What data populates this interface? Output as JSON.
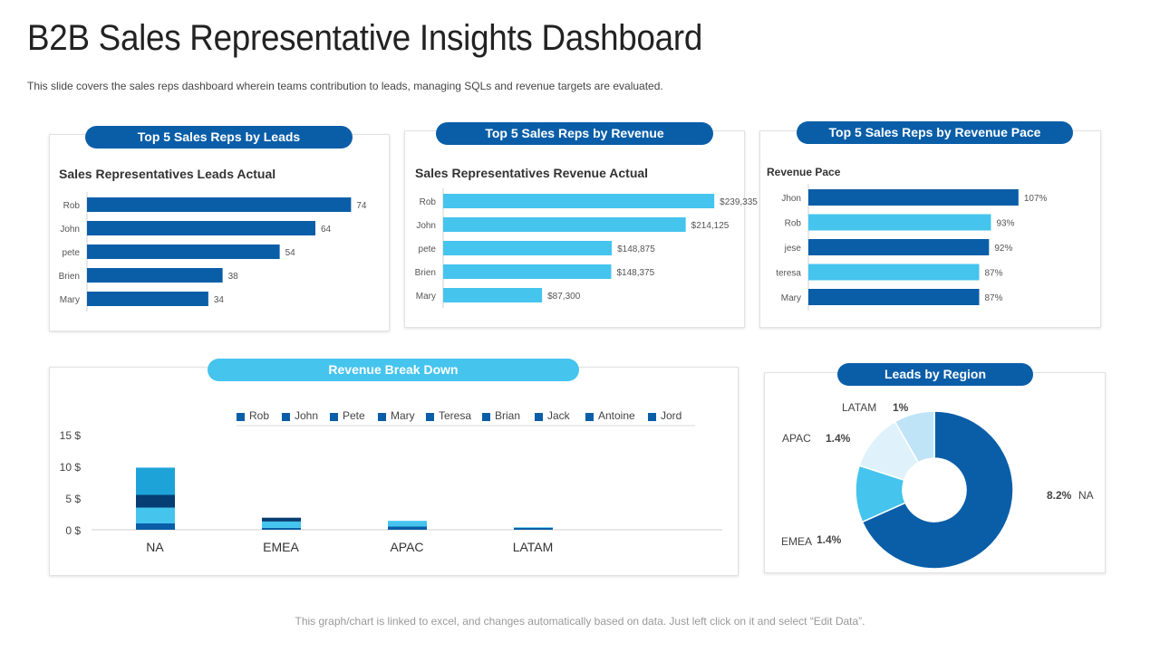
{
  "header": {
    "title": "B2B Sales Representative Insights Dashboard",
    "subtitle": "This slide covers the sales reps dashboard wherein teams contribution to leads, managing SQLs and revenue targets are evaluated."
  },
  "footer": {
    "note": "This graph/chart is linked to excel, and changes automatically based on data. Just left click on it and select “Edit Data”."
  },
  "colors": {
    "dark_blue": "#0a5ea8",
    "light_blue": "#45c4ee",
    "navy": "#063d73",
    "pale_blue": "#bfe3f7"
  },
  "panels": {
    "leads": {
      "pill": "Top 5 Sales Reps by Leads",
      "heading": "Sales Representatives Leads Actual"
    },
    "revenue": {
      "pill": "Top 5 Sales Reps by Revenue",
      "heading": "Sales Representatives Revenue Actual"
    },
    "pace": {
      "pill": "Top 5 Sales Reps by Revenue Pace",
      "heading": "Revenue Pace"
    },
    "breakdown": {
      "pill": "Revenue Break Down"
    },
    "region": {
      "pill": "Leads by Region"
    }
  },
  "chart_data": [
    {
      "id": "leads",
      "type": "bar",
      "orientation": "horizontal",
      "title": "Sales Representatives Leads Actual",
      "categories": [
        "Rob",
        "John",
        "pete",
        "Brien",
        "Mary"
      ],
      "values": [
        74,
        64,
        54,
        38,
        34
      ],
      "labels": [
        "74",
        "64",
        "54",
        "38",
        "34"
      ],
      "xlim": [
        0,
        80
      ]
    },
    {
      "id": "revenue",
      "type": "bar",
      "orientation": "horizontal",
      "title": "Sales Representatives Revenue Actual",
      "categories": [
        "Rob",
        "John",
        "pete",
        "Brien",
        "Mary"
      ],
      "values": [
        239335,
        214125,
        148875,
        148375,
        87300
      ],
      "labels": [
        "$239,335",
        "$214,125",
        "$148,875",
        "$148,375",
        "$87,300"
      ],
      "xlim": [
        0,
        260000
      ]
    },
    {
      "id": "pace",
      "type": "bar",
      "orientation": "horizontal",
      "title": "Revenue Pace",
      "categories": [
        "Jhon",
        "Rob",
        "jese",
        "teresa",
        "Mary"
      ],
      "values": [
        107,
        93,
        92,
        87,
        87
      ],
      "labels": [
        "107%",
        "93%",
        "92%",
        "87%",
        "87%"
      ],
      "xlim": [
        0,
        120
      ]
    },
    {
      "id": "breakdown",
      "type": "bar",
      "stacked": true,
      "title": "Revenue Break Down",
      "categories": [
        "NA",
        "EMEA",
        "APAC",
        "LATAM"
      ],
      "legend": [
        "Rob",
        "John",
        "Pete",
        "Mary",
        "Teresa",
        "Brian",
        "Jack",
        "Antoine",
        "Jord"
      ],
      "yticks": [
        "15 $",
        "10 $",
        "5 $",
        "0 $"
      ],
      "ylim": [
        0,
        15
      ],
      "series": [
        {
          "name": "Rob",
          "values": [
            1,
            0.3,
            0.5,
            0.3
          ]
        },
        {
          "name": "John",
          "values": [
            2.5,
            1,
            0.9,
            0.1
          ]
        },
        {
          "name": "Pete",
          "values": [
            2,
            0.6,
            0,
            0
          ]
        },
        {
          "name": "Mary",
          "values": [
            4.3,
            0,
            0,
            0
          ]
        }
      ],
      "legend_position": "top"
    },
    {
      "id": "region",
      "type": "pie",
      "donut": true,
      "title": "Leads by Region",
      "slices": [
        {
          "label": "NA",
          "value": 8.2,
          "display": "8.2%"
        },
        {
          "label": "EMEA",
          "value": 1.4,
          "display": "1.4%"
        },
        {
          "label": "APAC",
          "value": 1.4,
          "display": "1.4%"
        },
        {
          "label": "LATAM",
          "value": 1,
          "display": "1%"
        }
      ]
    }
  ]
}
